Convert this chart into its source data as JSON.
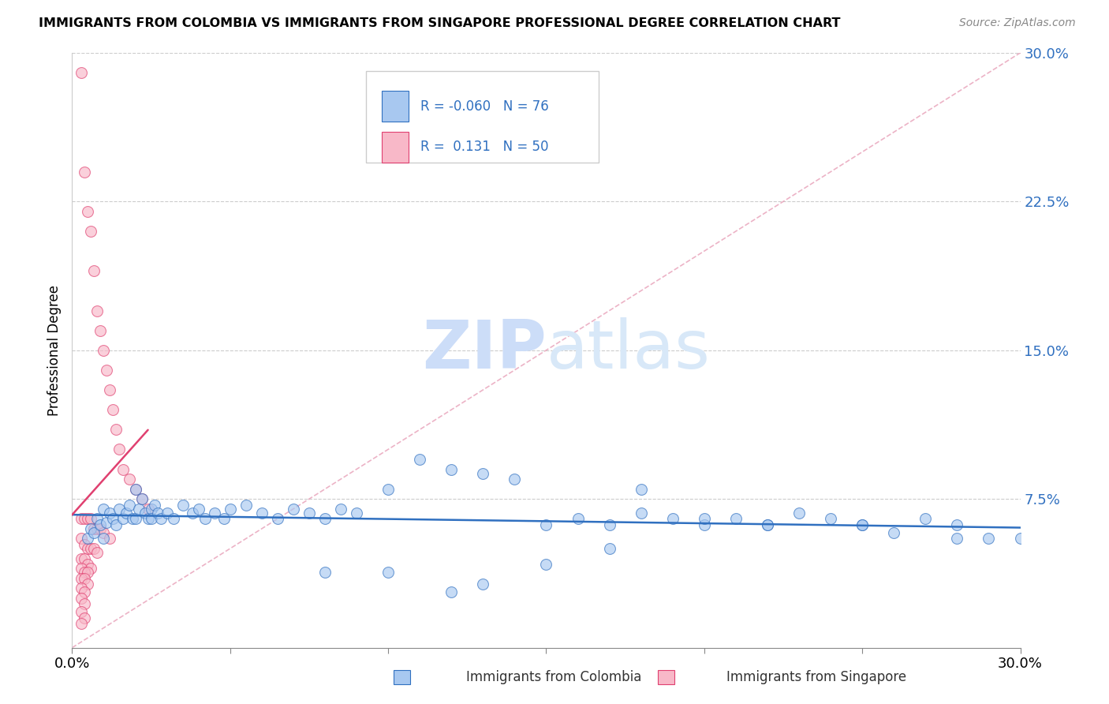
{
  "title": "IMMIGRANTS FROM COLOMBIA VS IMMIGRANTS FROM SINGAPORE PROFESSIONAL DEGREE CORRELATION CHART",
  "source": "Source: ZipAtlas.com",
  "ylabel": "Professional Degree",
  "ytick_vals": [
    0.0,
    0.075,
    0.15,
    0.225,
    0.3
  ],
  "ytick_labels": [
    "",
    "7.5%",
    "15.0%",
    "22.5%",
    "30.0%"
  ],
  "xtick_vals": [
    0.0,
    0.05,
    0.1,
    0.15,
    0.2,
    0.25,
    0.3
  ],
  "xlim": [
    0.0,
    0.3
  ],
  "ylim": [
    0.0,
    0.3
  ],
  "r_colombia": -0.06,
  "n_colombia": 76,
  "r_singapore": 0.131,
  "n_singapore": 50,
  "colombia_color": "#a8c8f0",
  "singapore_color": "#f8b8c8",
  "trend_colombia_color": "#3070c0",
  "trend_singapore_color": "#e04070",
  "dashed_line_color": "#e8a0b8",
  "watermark_zip": "ZIP",
  "watermark_atlas": "atlas",
  "watermark_color": "#ccddf8",
  "legend_r_colombia": "R = -0.060",
  "legend_n_colombia": "N = 76",
  "legend_r_singapore": "R =  0.131",
  "legend_n_singapore": "N = 50",
  "colombia_scatter_x": [
    0.005,
    0.006,
    0.007,
    0.008,
    0.009,
    0.01,
    0.01,
    0.011,
    0.012,
    0.013,
    0.014,
    0.015,
    0.016,
    0.017,
    0.018,
    0.019,
    0.02,
    0.02,
    0.021,
    0.022,
    0.023,
    0.024,
    0.025,
    0.025,
    0.026,
    0.027,
    0.028,
    0.03,
    0.032,
    0.035,
    0.038,
    0.04,
    0.042,
    0.045,
    0.048,
    0.05,
    0.055,
    0.06,
    0.065,
    0.07,
    0.075,
    0.08,
    0.085,
    0.09,
    0.1,
    0.11,
    0.12,
    0.13,
    0.14,
    0.15,
    0.16,
    0.17,
    0.18,
    0.19,
    0.2,
    0.21,
    0.22,
    0.23,
    0.24,
    0.25,
    0.26,
    0.27,
    0.28,
    0.29,
    0.3,
    0.18,
    0.25,
    0.15,
    0.2,
    0.22,
    0.13,
    0.17,
    0.08,
    0.1,
    0.12,
    0.28
  ],
  "colombia_scatter_y": [
    0.055,
    0.06,
    0.058,
    0.065,
    0.062,
    0.07,
    0.055,
    0.063,
    0.068,
    0.065,
    0.062,
    0.07,
    0.065,
    0.068,
    0.072,
    0.065,
    0.08,
    0.065,
    0.07,
    0.075,
    0.068,
    0.065,
    0.07,
    0.065,
    0.072,
    0.068,
    0.065,
    0.068,
    0.065,
    0.072,
    0.068,
    0.07,
    0.065,
    0.068,
    0.065,
    0.07,
    0.072,
    0.068,
    0.065,
    0.07,
    0.068,
    0.065,
    0.07,
    0.068,
    0.08,
    0.095,
    0.09,
    0.088,
    0.085,
    0.062,
    0.065,
    0.062,
    0.068,
    0.065,
    0.062,
    0.065,
    0.062,
    0.068,
    0.065,
    0.062,
    0.058,
    0.065,
    0.062,
    0.055,
    0.055,
    0.08,
    0.062,
    0.042,
    0.065,
    0.062,
    0.032,
    0.05,
    0.038,
    0.038,
    0.028,
    0.055
  ],
  "singapore_scatter_x": [
    0.003,
    0.004,
    0.005,
    0.006,
    0.007,
    0.008,
    0.009,
    0.01,
    0.011,
    0.012,
    0.013,
    0.014,
    0.015,
    0.016,
    0.018,
    0.02,
    0.022,
    0.024,
    0.003,
    0.004,
    0.005,
    0.006,
    0.007,
    0.008,
    0.009,
    0.01,
    0.012,
    0.003,
    0.004,
    0.005,
    0.006,
    0.007,
    0.008,
    0.003,
    0.004,
    0.005,
    0.006,
    0.003,
    0.004,
    0.005,
    0.003,
    0.004,
    0.005,
    0.003,
    0.004,
    0.003,
    0.004,
    0.003,
    0.004,
    0.003
  ],
  "singapore_scatter_y": [
    0.29,
    0.24,
    0.22,
    0.21,
    0.19,
    0.17,
    0.16,
    0.15,
    0.14,
    0.13,
    0.12,
    0.11,
    0.1,
    0.09,
    0.085,
    0.08,
    0.075,
    0.07,
    0.065,
    0.065,
    0.065,
    0.065,
    0.06,
    0.06,
    0.06,
    0.058,
    0.055,
    0.055,
    0.052,
    0.05,
    0.05,
    0.05,
    0.048,
    0.045,
    0.045,
    0.042,
    0.04,
    0.04,
    0.038,
    0.038,
    0.035,
    0.035,
    0.032,
    0.03,
    0.028,
    0.025,
    0.022,
    0.018,
    0.015,
    0.012
  ]
}
